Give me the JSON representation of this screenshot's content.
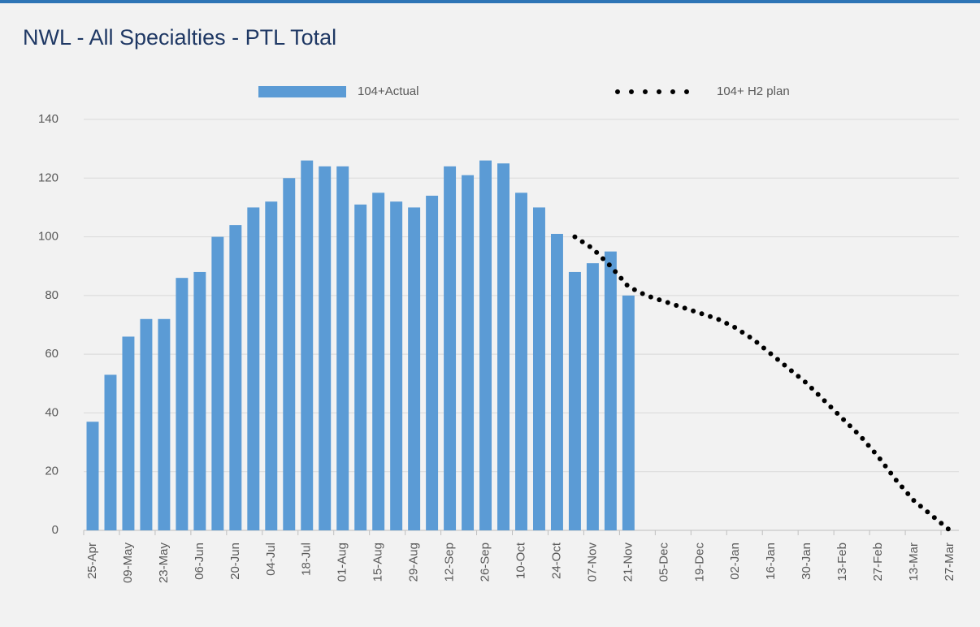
{
  "chart_data": {
    "type": "bar-line",
    "title": "NWL - All Specialties - PTL Total",
    "categories": [
      "25-Apr",
      null,
      "09-May",
      null,
      "23-May",
      null,
      "06-Jun",
      null,
      "20-Jun",
      null,
      "04-Jul",
      null,
      "18-Jul",
      null,
      "01-Aug",
      null,
      "15-Aug",
      null,
      "29-Aug",
      null,
      "12-Sep",
      null,
      "26-Sep",
      null,
      "10-Oct",
      null,
      "24-Oct",
      null,
      "07-Nov",
      null,
      "21-Nov",
      null,
      "05-Dec",
      null,
      "19-Dec",
      null,
      "02-Jan",
      null,
      "16-Jan",
      null,
      "30-Jan",
      null,
      "13-Feb",
      null,
      "27-Feb",
      null,
      "13-Mar",
      null,
      "27-Mar"
    ],
    "series": [
      {
        "name": "104+Actual",
        "type": "bar",
        "color": "#5b9bd5",
        "values": [
          37,
          53,
          66,
          72,
          72,
          86,
          88,
          100,
          104,
          110,
          112,
          120,
          126,
          124,
          124,
          111,
          115,
          112,
          110,
          114,
          124,
          121,
          126,
          125,
          115,
          110,
          101,
          88,
          91,
          95,
          80,
          null,
          null,
          null,
          null,
          null,
          null,
          null,
          null,
          null,
          null,
          null,
          null,
          null,
          null,
          null,
          null,
          null,
          null
        ]
      },
      {
        "name": "104+ H2 plan",
        "type": "line",
        "color": "#000000",
        "values": [
          null,
          null,
          null,
          null,
          null,
          null,
          null,
          null,
          null,
          null,
          null,
          null,
          null,
          null,
          null,
          null,
          null,
          null,
          null,
          null,
          null,
          null,
          null,
          null,
          null,
          null,
          null,
          100,
          96,
          90,
          83,
          80,
          78,
          76,
          74,
          72,
          69,
          65,
          60,
          55,
          50,
          44,
          38,
          32,
          25,
          17,
          10,
          5,
          0
        ]
      }
    ],
    "ylim": [
      0,
      140
    ],
    "yticks": [
      0,
      20,
      40,
      60,
      80,
      100,
      120,
      140
    ],
    "grid": true
  }
}
